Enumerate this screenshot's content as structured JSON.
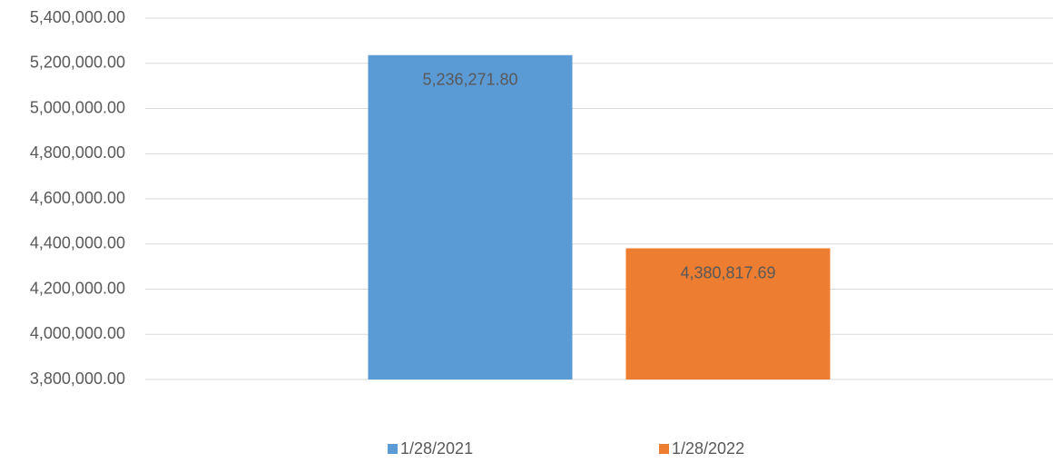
{
  "chart_data": {
    "type": "bar",
    "categories": [
      null
    ],
    "series": [
      {
        "name": "1/28/2021",
        "color": "#5b9bd5",
        "values": [
          5236271.8
        ],
        "value_labels": [
          "5,236,271.80"
        ]
      },
      {
        "name": "1/28/2022",
        "color": "#ed7d31",
        "values": [
          4380817.69
        ],
        "value_labels": [
          "4,380,817.69"
        ]
      }
    ],
    "ylim": [
      3800000,
      5400000
    ],
    "yticks": [
      {
        "value": 3800000,
        "label": "3,800,000.00"
      },
      {
        "value": 4000000,
        "label": "4,000,000.00"
      },
      {
        "value": 4200000,
        "label": "4,200,000.00"
      },
      {
        "value": 4400000,
        "label": "4,400,000.00"
      },
      {
        "value": 4600000,
        "label": "4,600,000.00"
      },
      {
        "value": 4800000,
        "label": "4,800,000.00"
      },
      {
        "value": 5000000,
        "label": "5,000,000.00"
      },
      {
        "value": 5200000,
        "label": "5,200,000.00"
      },
      {
        "value": 5400000,
        "label": "5,400,000.00"
      }
    ],
    "grid": true,
    "legend": "bottom"
  }
}
